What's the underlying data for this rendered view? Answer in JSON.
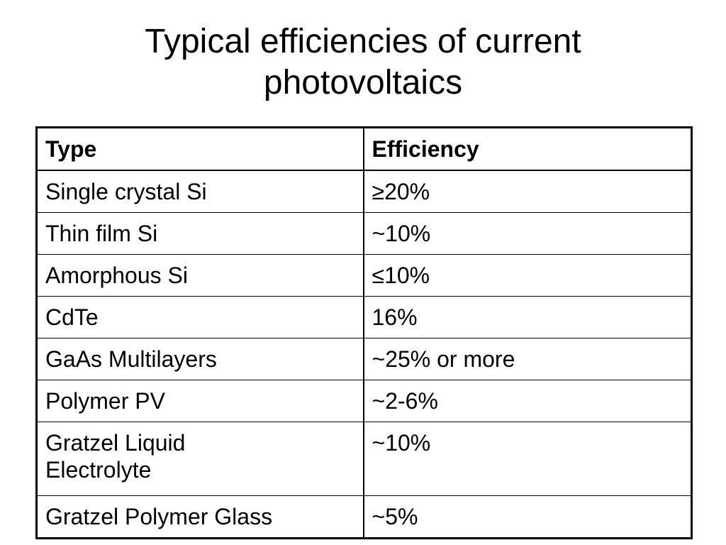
{
  "slide": {
    "title_line1": "Typical efficiencies of current",
    "title_line2": "photovoltaics"
  },
  "table": {
    "headers": {
      "type": "Type",
      "efficiency": "Efficiency"
    },
    "rows": [
      {
        "type": "Single crystal Si",
        "efficiency": "≥20%"
      },
      {
        "type": "Thin film Si",
        "efficiency": "~10%"
      },
      {
        "type": "Amorphous Si",
        "efficiency": "≤10%"
      },
      {
        "type": "CdTe",
        "efficiency": "16%"
      },
      {
        "type": "GaAs Multilayers",
        "efficiency": "~25% or more"
      },
      {
        "type": "Polymer PV",
        "efficiency": "~2-6%"
      },
      {
        "type_line1": "Gratzel Liquid",
        "type_line2": "Electrolyte",
        "efficiency": "~10%"
      },
      {
        "type": "Gratzel Polymer Glass",
        "efficiency": "~5%"
      }
    ]
  }
}
